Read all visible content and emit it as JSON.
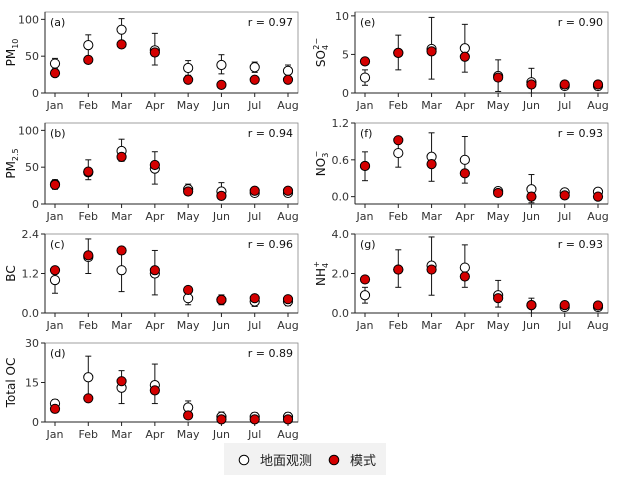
{
  "legend": {
    "obs_label": "地面观测",
    "model_label": "模式",
    "obs_color": "#ffffff",
    "model_color": "#d40000"
  },
  "chart_data": [
    {
      "type": "scatter",
      "panel": "(a)",
      "ylabel": "PM",
      "ylabel_sub": "10",
      "ylabel_sup": "",
      "r_text": "r = 0.97",
      "ylim": [
        0,
        110
      ],
      "yticks": [
        "0",
        "50",
        "100"
      ],
      "ytick_values": [
        0,
        50,
        100
      ],
      "categories": [
        "Jan",
        "Feb",
        "Mar",
        "Apr",
        "May",
        "Jun",
        "Jul",
        "Aug"
      ],
      "series": [
        {
          "name": "地面观测",
          "values": [
            40,
            65,
            86,
            58,
            34,
            38,
            35,
            30
          ],
          "err_low": [
            33,
            50,
            70,
            38,
            24,
            26,
            28,
            22
          ],
          "err_high": [
            47,
            79,
            101,
            81,
            44,
            52,
            42,
            38
          ]
        },
        {
          "name": "模式",
          "values": [
            27,
            45,
            66,
            55,
            18,
            11,
            18,
            18
          ]
        }
      ]
    },
    {
      "type": "scatter",
      "panel": "(e)",
      "ylabel": "SO",
      "ylabel_sub": "4",
      "ylabel_sup": "2−",
      "r_text": "r = 0.90",
      "ylim": [
        0,
        10.5
      ],
      "yticks": [
        "0",
        "5",
        "10"
      ],
      "ytick_values": [
        0,
        5,
        10
      ],
      "categories": [
        "Jan",
        "Feb",
        "Mar",
        "Apr",
        "May",
        "Jun",
        "Jul",
        "Aug"
      ],
      "series": [
        {
          "name": "地面观测",
          "values": [
            2.0,
            5.2,
            5.7,
            5.8,
            2.2,
            1.4,
            0.9,
            0.9
          ],
          "err_low": [
            1.0,
            3.0,
            1.8,
            2.7,
            0.2,
            0.0,
            0.6,
            0.4
          ],
          "err_high": [
            3.0,
            7.5,
            9.8,
            8.9,
            4.3,
            3.2,
            1.2,
            1.4
          ]
        },
        {
          "name": "模式",
          "values": [
            4.1,
            5.2,
            5.4,
            4.7,
            2.0,
            1.1,
            1.1,
            1.1
          ]
        }
      ]
    },
    {
      "type": "scatter",
      "panel": "(b)",
      "ylabel": "PM",
      "ylabel_sub": "2.5",
      "ylabel_sup": "",
      "r_text": "r = 0.94",
      "ylim": [
        0,
        110
      ],
      "yticks": [
        "0",
        "50",
        "100"
      ],
      "ytick_values": [
        0,
        50,
        100
      ],
      "categories": [
        "Jan",
        "Feb",
        "Mar",
        "Apr",
        "May",
        "Jun",
        "Jul",
        "Aug"
      ],
      "series": [
        {
          "name": "地面观测",
          "values": [
            27,
            43,
            72,
            48,
            20,
            17,
            15,
            15
          ],
          "err_low": [
            20,
            33,
            58,
            27,
            14,
            9,
            11,
            10
          ],
          "err_high": [
            33,
            60,
            88,
            71,
            27,
            29,
            20,
            20
          ]
        },
        {
          "name": "模式",
          "values": [
            26,
            44,
            64,
            53,
            17,
            11,
            18,
            18
          ]
        }
      ]
    },
    {
      "type": "scatter",
      "panel": "(f)",
      "ylabel": "NO",
      "ylabel_sub": "3",
      "ylabel_sup": "−",
      "r_text": "r = 0.93",
      "ylim": [
        -0.12,
        1.2
      ],
      "yticks": [
        "0.0",
        "0.6",
        "1.2"
      ],
      "ytick_values": [
        0,
        0.6,
        1.2
      ],
      "categories": [
        "Jan",
        "Feb",
        "Mar",
        "Apr",
        "May",
        "Jun",
        "Jul",
        "Aug"
      ],
      "series": [
        {
          "name": "地面观测",
          "values": [
            0.5,
            0.71,
            0.65,
            0.6,
            0.09,
            0.12,
            0.07,
            0.08
          ],
          "err_low": [
            0.26,
            0.48,
            0.25,
            0.22,
            0.05,
            -0.1,
            0.03,
            0.03
          ],
          "err_high": [
            0.73,
            0.92,
            1.04,
            0.98,
            0.13,
            0.36,
            0.11,
            0.13
          ]
        },
        {
          "name": "模式",
          "values": [
            0.5,
            0.92,
            0.53,
            0.38,
            0.06,
            0.0,
            0.02,
            0.0
          ]
        }
      ]
    },
    {
      "type": "scatter",
      "panel": "(c)",
      "ylabel": "BC",
      "ylabel_sub": "",
      "ylabel_sup": "",
      "r_text": "r = 0.96",
      "ylim": [
        0,
        2.4
      ],
      "yticks": [
        "0.0",
        "1.2",
        "2.4"
      ],
      "ytick_values": [
        0,
        1.2,
        2.4
      ],
      "categories": [
        "Jan",
        "Feb",
        "Mar",
        "Apr",
        "May",
        "Jun",
        "Jul",
        "Aug"
      ],
      "series": [
        {
          "name": "地面观测",
          "values": [
            1.0,
            1.7,
            1.3,
            1.2,
            0.45,
            0.4,
            0.35,
            0.35
          ],
          "err_low": [
            0.6,
            1.2,
            0.65,
            0.55,
            0.25,
            0.25,
            0.2,
            0.22
          ],
          "err_high": [
            1.35,
            2.25,
            1.95,
            1.9,
            0.65,
            0.55,
            0.5,
            0.5
          ]
        },
        {
          "name": "模式",
          "values": [
            1.3,
            1.75,
            1.9,
            1.3,
            0.7,
            0.4,
            0.45,
            0.42
          ]
        }
      ]
    },
    {
      "type": "scatter",
      "panel": "(g)",
      "ylabel": "NH",
      "ylabel_sub": "4",
      "ylabel_sup": "+",
      "r_text": "r = 0.93",
      "ylim": [
        0,
        4
      ],
      "yticks": [
        "0.0",
        "2.0",
        "4.0"
      ],
      "ytick_values": [
        0,
        2,
        4
      ],
      "categories": [
        "Jan",
        "Feb",
        "Mar",
        "Apr",
        "May",
        "Jun",
        "Jul",
        "Aug"
      ],
      "series": [
        {
          "name": "地面观测",
          "values": [
            0.9,
            2.2,
            2.4,
            2.3,
            0.9,
            0.4,
            0.3,
            0.3
          ],
          "err_low": [
            0.5,
            1.3,
            0.9,
            1.3,
            0.3,
            0.0,
            0.2,
            0.15
          ],
          "err_high": [
            1.3,
            3.2,
            3.85,
            3.45,
            1.65,
            0.75,
            0.5,
            0.5
          ]
        },
        {
          "name": "模式",
          "values": [
            1.7,
            2.2,
            2.2,
            1.85,
            0.75,
            0.4,
            0.4,
            0.38
          ]
        }
      ]
    },
    {
      "type": "scatter",
      "panel": "(d)",
      "ylabel": "Total OC",
      "ylabel_sub": "",
      "ylabel_sup": "",
      "r_text": "r = 0.89",
      "ylim": [
        0,
        30
      ],
      "yticks": [
        "0",
        "15",
        "30"
      ],
      "ytick_values": [
        0,
        15,
        30
      ],
      "categories": [
        "Jan",
        "Feb",
        "Mar",
        "Apr",
        "May",
        "Jun",
        "Jul",
        "Aug"
      ],
      "series": [
        {
          "name": "地面观测",
          "values": [
            7,
            17,
            13,
            14,
            5.5,
            2,
            2,
            2
          ],
          "err_low": [
            5.5,
            9,
            7,
            7,
            3.5,
            0.5,
            0.5,
            0.5
          ],
          "err_high": [
            8.5,
            25,
            19.5,
            22,
            8,
            3.8,
            3.5,
            3.5
          ]
        },
        {
          "name": "模式",
          "values": [
            5,
            9,
            15.5,
            12,
            2.5,
            1,
            1,
            1
          ]
        }
      ]
    }
  ]
}
